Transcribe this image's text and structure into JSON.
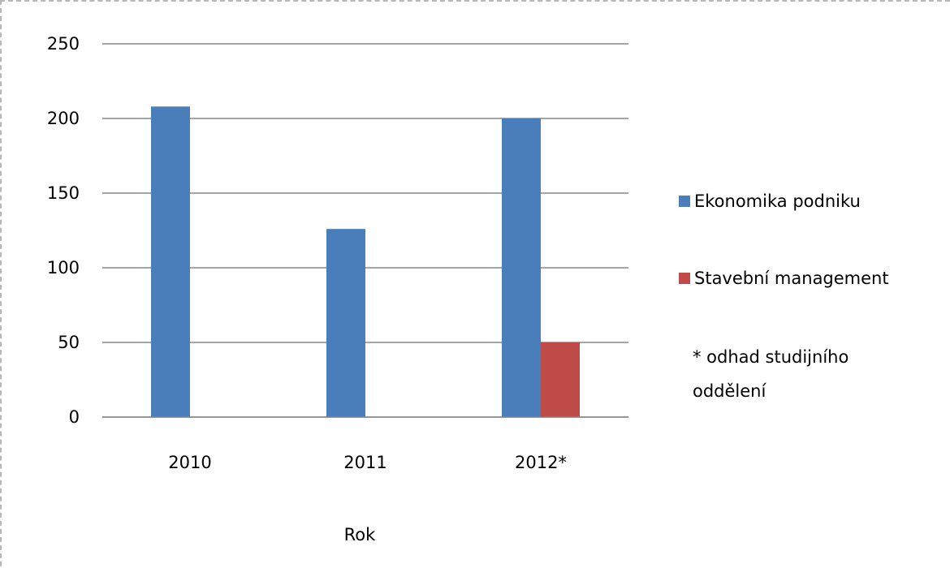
{
  "chart_data": {
    "type": "bar",
    "categories": [
      "2010",
      "2011",
      "2012*"
    ],
    "series": [
      {
        "name": "Ekonomika podniku",
        "values": [
          208,
          126,
          200
        ],
        "color": "#4a7ebb"
      },
      {
        "name": "Stavební management",
        "values": [
          0,
          0,
          50
        ],
        "color": "#be4b48"
      }
    ],
    "xlabel": "Rok",
    "ylabel": "",
    "ylim": [
      0,
      250
    ],
    "yticks": [
      0,
      50,
      100,
      150,
      200,
      250
    ],
    "grid": true,
    "legend_position": "right",
    "note_lines": [
      "* odhad studijního",
      "oddělení"
    ],
    "gridline_color": "#868686"
  }
}
